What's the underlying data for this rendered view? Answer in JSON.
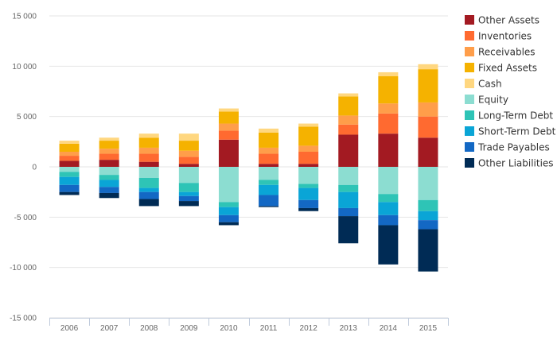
{
  "chart_data": {
    "type": "bar",
    "stacked": true,
    "categories": [
      "2006",
      "2007",
      "2008",
      "2009",
      "2010",
      "2011",
      "2012",
      "2013",
      "2014",
      "2015"
    ],
    "ylim": [
      -15000,
      15000
    ],
    "yticks": [
      -15000,
      -10000,
      -5000,
      0,
      5000,
      10000,
      15000
    ],
    "ytick_labels": [
      "-15 000",
      "-10 000",
      "-5 000",
      "0",
      "5 000",
      "10 000",
      "15 000"
    ],
    "grid": true,
    "legend_position": "right",
    "series": [
      {
        "name": "Other Assets",
        "color": "#a31a22",
        "values": [
          600,
          700,
          500,
          300,
          2700,
          300,
          300,
          3200,
          3300,
          2900
        ]
      },
      {
        "name": "Inventories",
        "color": "#ff6a30",
        "values": [
          500,
          600,
          800,
          700,
          900,
          1000,
          1200,
          1000,
          2000,
          2100
        ]
      },
      {
        "name": "Receivables",
        "color": "#ff9e4a",
        "values": [
          400,
          500,
          600,
          600,
          700,
          600,
          600,
          900,
          1000,
          1400
        ]
      },
      {
        "name": "Fixed Assets",
        "color": "#f5b200",
        "values": [
          800,
          800,
          1000,
          1000,
          1200,
          1500,
          1900,
          1900,
          2700,
          3300
        ]
      },
      {
        "name": "Cash",
        "color": "#ffd780",
        "values": [
          300,
          300,
          400,
          700,
          300,
          400,
          300,
          300,
          400,
          500
        ]
      },
      {
        "name": "Equity",
        "color": "#8cddd1",
        "values": [
          -500,
          -800,
          -1100,
          -1600,
          -3500,
          -1300,
          -1700,
          -1800,
          -2700,
          -3300
        ]
      },
      {
        "name": "Long-Term Debt",
        "color": "#2ec4b6",
        "values": [
          -500,
          -500,
          -1000,
          -900,
          -500,
          -500,
          -400,
          -700,
          -800,
          -1100
        ]
      },
      {
        "name": "Short-Term Debt",
        "color": "#0aa5d6",
        "values": [
          -800,
          -700,
          -400,
          -400,
          -800,
          -1000,
          -1200,
          -1600,
          -1300,
          -900
        ]
      },
      {
        "name": "Trade Payables",
        "color": "#1368c4",
        "values": [
          -700,
          -600,
          -700,
          -500,
          -700,
          -1100,
          -800,
          -800,
          -1000,
          -900
        ]
      },
      {
        "name": "Other Liabilities",
        "color": "#002b55",
        "values": [
          -300,
          -500,
          -700,
          -500,
          -300,
          -100,
          -300,
          -2700,
          -3900,
          -4200
        ]
      }
    ]
  }
}
